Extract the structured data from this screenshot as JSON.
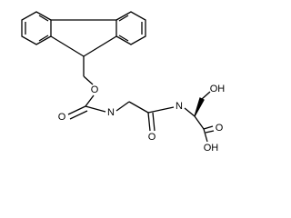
{
  "atoms": [
    {
      "label": "O"
    },
    {
      "label": "O"
    },
    {
      "label": "N"
    },
    {
      "label": "O"
    },
    {
      "label": "N"
    },
    {
      "label": "OH"
    },
    {
      "label": "O"
    },
    {
      "label": "OH"
    }
  ]
}
